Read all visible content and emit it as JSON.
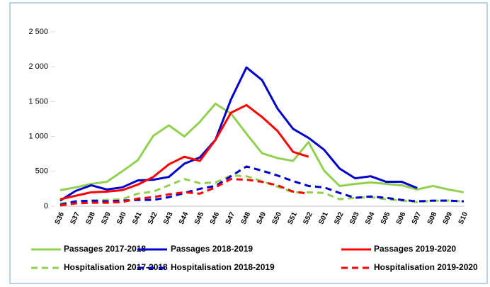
{
  "chart_data": {
    "type": "line",
    "categories": [
      "S36",
      "S37",
      "S38",
      "S39",
      "S40",
      "S41",
      "S42",
      "S43",
      "S44",
      "S45",
      "S46",
      "S47",
      "S48",
      "S49",
      "S50",
      "S51",
      "S52",
      "S01",
      "S02",
      "S03",
      "S04",
      "S05",
      "S06",
      "S07",
      "S08",
      "S09",
      "S10"
    ],
    "ylim": [
      0,
      2500
    ],
    "yticks": [
      0,
      500,
      {
        "value": 1000,
        "label": "1 000"
      },
      {
        "value": 1500,
        "label": "1 500"
      },
      {
        "value": 2000,
        "label": "2 000"
      },
      {
        "value": 2500,
        "label": "2 500"
      }
    ],
    "grid": false,
    "legend": "bottom",
    "series": [
      {
        "name": "Passages 2017-2018",
        "color": "#92d050",
        "dash": false,
        "values": [
          230,
          270,
          320,
          350,
          500,
          660,
          1010,
          1160,
          1000,
          1210,
          1470,
          1330,
          1040,
          760,
          690,
          650,
          920,
          510,
          290,
          320,
          340,
          320,
          300,
          240,
          290,
          240,
          200
        ]
      },
      {
        "name": "Passages 2018-2019",
        "color": "#0000cc",
        "dash": false,
        "values": [
          80,
          220,
          300,
          240,
          270,
          370,
          380,
          420,
          610,
          700,
          950,
          1530,
          1990,
          1810,
          1400,
          1110,
          980,
          810,
          540,
          400,
          430,
          350,
          350,
          260,
          null,
          null,
          null
        ]
      },
      {
        "name": "Passages 2019-2020",
        "color": "#ff0000",
        "dash": false,
        "values": [
          100,
          150,
          200,
          210,
          230,
          310,
          420,
          600,
          710,
          650,
          950,
          1340,
          1450,
          1280,
          1080,
          780,
          710,
          null,
          null,
          null,
          null,
          null,
          null,
          null,
          null,
          null,
          null
        ]
      },
      {
        "name": "Hospitalisation 2017-2018",
        "color": "#92d050",
        "dash": true,
        "values": [
          40,
          70,
          80,
          90,
          100,
          180,
          210,
          300,
          390,
          330,
          340,
          440,
          430,
          360,
          280,
          200,
          200,
          190,
          100,
          120,
          130,
          100,
          80,
          60,
          80,
          80,
          70
        ]
      },
      {
        "name": "Hospitalisation 2018-2019",
        "color": "#0000cc",
        "dash": true,
        "values": [
          20,
          70,
          80,
          70,
          80,
          90,
          90,
          130,
          190,
          250,
          290,
          430,
          570,
          510,
          440,
          360,
          290,
          270,
          190,
          120,
          140,
          120,
          90,
          70,
          80,
          80,
          70
        ]
      },
      {
        "name": "Hospitalisation 2019-2020",
        "color": "#ff0000",
        "dash": true,
        "values": [
          10,
          40,
          50,
          50,
          60,
          110,
          130,
          170,
          200,
          180,
          270,
          390,
          380,
          350,
          300,
          210,
          180,
          null,
          null,
          null,
          null,
          null,
          null,
          null,
          null,
          null,
          null
        ]
      }
    ]
  }
}
